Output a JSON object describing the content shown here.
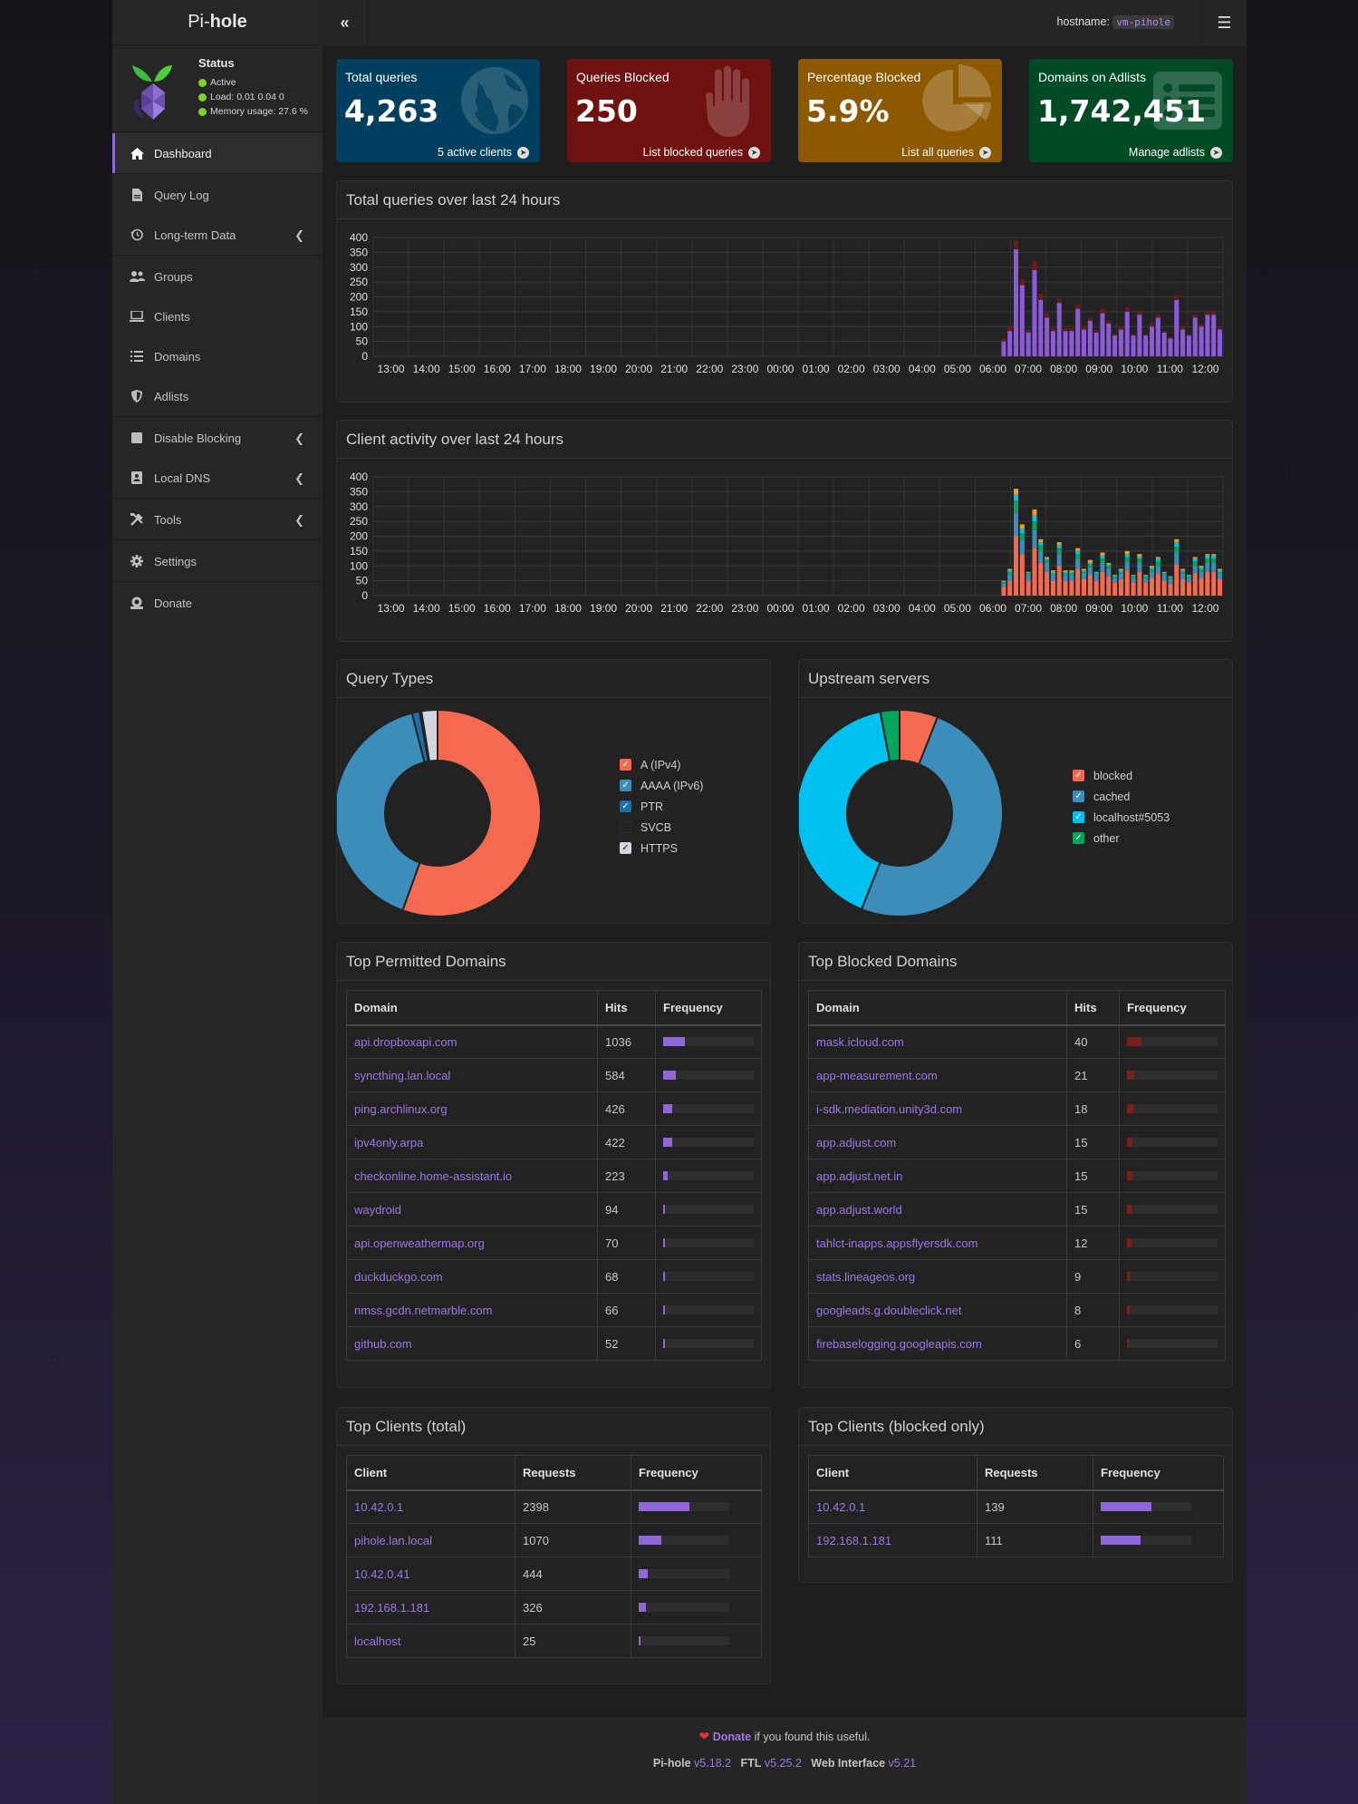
{
  "brand": {
    "pre": "Pi-",
    "bold": "hole"
  },
  "status": {
    "title": "Status",
    "active": "Active",
    "load": "Load:  0.01  0.04  0",
    "memory": "Memory usage:  27.6 %"
  },
  "topbar": {
    "hostname_label": "hostname:",
    "hostname_value": "vm-pihole"
  },
  "nav": [
    {
      "label": "Dashboard",
      "icon": "home-icon"
    },
    {
      "label": "Query Log",
      "icon": "file-icon"
    },
    {
      "label": "Long-term Data",
      "icon": "history-icon"
    },
    {
      "label": "Groups",
      "icon": "users-icon"
    },
    {
      "label": "Clients",
      "icon": "laptop-icon"
    },
    {
      "label": "Domains",
      "icon": "list-icon"
    },
    {
      "label": "Adlists",
      "icon": "shield-icon"
    },
    {
      "label": "Disable Blocking",
      "icon": "stop-icon"
    },
    {
      "label": "Local DNS",
      "icon": "address-book-icon"
    },
    {
      "label": "Tools",
      "icon": "tools-icon"
    },
    {
      "label": "Settings",
      "icon": "gear-icon"
    },
    {
      "label": "Donate",
      "icon": "donate-icon"
    }
  ],
  "tiles": [
    {
      "title": "Total queries",
      "value": "4,263",
      "footer": "5 active clients",
      "color": "#00405e"
    },
    {
      "title": "Queries Blocked",
      "value": "250",
      "footer": "List blocked queries",
      "color": "#6f1111"
    },
    {
      "title": "Percentage Blocked",
      "value": "5.9%",
      "footer": "List all queries",
      "color": "#8c5800"
    },
    {
      "title": "Domains on Adlists",
      "value": "1,742,451",
      "footer": "Manage adlists",
      "color": "#004a25"
    }
  ],
  "charts": {
    "queries_title": "Total queries over last 24 hours",
    "clients_title": "Client activity over last 24 hours",
    "query_types_title": "Query Types",
    "upstream_title": "Upstream servers"
  },
  "chart_data": [
    {
      "type": "bar",
      "title": "Total queries over last 24 hours",
      "ylim": [
        0,
        400
      ],
      "yticks": [
        "400",
        "350",
        "300",
        "250",
        "200",
        "150",
        "100",
        "50",
        "0"
      ],
      "xticks": [
        "13:00",
        "14:00",
        "15:00",
        "16:00",
        "17:00",
        "18:00",
        "19:00",
        "20:00",
        "21:00",
        "22:00",
        "23:00",
        "00:00",
        "01:00",
        "02:00",
        "03:00",
        "04:00",
        "05:00",
        "06:00",
        "07:00",
        "08:00",
        "09:00",
        "10:00",
        "11:00",
        "12:00"
      ],
      "series": [
        {
          "name": "permitted",
          "color": "#8a5ad8",
          "values": [
            50,
            85,
            360,
            240,
            80,
            290,
            190,
            130,
            85,
            180,
            85,
            85,
            160,
            90,
            120,
            80,
            145,
            110,
            70,
            90,
            150,
            70,
            140,
            70,
            100,
            130,
            80,
            60,
            190,
            90,
            70,
            130,
            100,
            140,
            140,
            90
          ]
        },
        {
          "name": "blocked",
          "color": "#6f1a1a",
          "values": [
            10,
            15,
            30,
            20,
            10,
            30,
            20,
            15,
            10,
            15,
            10,
            10,
            15,
            10,
            10,
            10,
            15,
            10,
            5,
            10,
            15,
            5,
            10,
            5,
            10,
            10,
            5,
            5,
            15,
            10,
            5,
            10,
            10,
            10,
            10,
            5
          ]
        }
      ]
    },
    {
      "type": "bar",
      "title": "Client activity over last 24 hours",
      "ylim": [
        0,
        400
      ],
      "yticks": [
        "400",
        "350",
        "300",
        "250",
        "200",
        "150",
        "100",
        "50",
        "0"
      ],
      "xticks": [
        "13:00",
        "14:00",
        "15:00",
        "16:00",
        "17:00",
        "18:00",
        "19:00",
        "20:00",
        "21:00",
        "22:00",
        "23:00",
        "00:00",
        "01:00",
        "02:00",
        "03:00",
        "04:00",
        "05:00",
        "06:00",
        "07:00",
        "08:00",
        "09:00",
        "10:00",
        "11:00",
        "12:00"
      ],
      "series": [
        {
          "name": "10.42.0.1",
          "color": "#f46a50",
          "values": [
            30,
            50,
            200,
            140,
            50,
            160,
            110,
            80,
            50,
            100,
            50,
            50,
            90,
            55,
            70,
            50,
            80,
            65,
            45,
            55,
            85,
            45,
            80,
            45,
            60,
            75,
            50,
            40,
            105,
            55,
            45,
            75,
            60,
            80,
            80,
            55
          ]
        },
        {
          "name": "pihole.lan.local",
          "color": "#3c8dbc",
          "values": [
            10,
            20,
            80,
            50,
            20,
            60,
            40,
            30,
            20,
            40,
            20,
            20,
            35,
            20,
            25,
            20,
            30,
            25,
            15,
            20,
            30,
            15,
            30,
            15,
            20,
            25,
            20,
            15,
            40,
            20,
            15,
            25,
            20,
            30,
            30,
            20
          ]
        },
        {
          "name": "10.42.0.41",
          "color": "#00a65a",
          "values": [
            5,
            10,
            40,
            20,
            5,
            30,
            20,
            10,
            5,
            20,
            5,
            5,
            15,
            5,
            10,
            5,
            15,
            10,
            5,
            5,
            15,
            5,
            15,
            5,
            10,
            15,
            5,
            5,
            20,
            5,
            5,
            15,
            10,
            15,
            15,
            5
          ]
        },
        {
          "name": "192.168.1.181",
          "color": "#00c0ef",
          "values": [
            3,
            5,
            20,
            15,
            3,
            20,
            10,
            5,
            5,
            10,
            5,
            5,
            10,
            5,
            5,
            5,
            10,
            5,
            3,
            5,
            10,
            3,
            5,
            3,
            5,
            10,
            3,
            3,
            15,
            5,
            3,
            10,
            5,
            10,
            10,
            5
          ]
        },
        {
          "name": "localhost",
          "color": "#f39c12",
          "values": [
            2,
            5,
            20,
            15,
            2,
            20,
            10,
            5,
            5,
            10,
            5,
            5,
            10,
            5,
            10,
            0,
            10,
            5,
            2,
            5,
            10,
            2,
            10,
            2,
            5,
            5,
            2,
            2,
            10,
            5,
            2,
            5,
            5,
            5,
            5,
            5
          ]
        }
      ]
    },
    {
      "type": "pie",
      "title": "Query Types",
      "labels": [
        "A (IPv4)",
        "AAAA (IPv6)",
        "PTR",
        "SVCB",
        "HTTPS"
      ],
      "values": [
        55.5,
        40.5,
        1.2,
        0.3,
        2.5
      ],
      "colors": [
        "#f46a50",
        "#3c8dbc",
        "#1e6fa6",
        "#232323",
        "#d2d6de"
      ]
    },
    {
      "type": "pie",
      "title": "Upstream servers",
      "labels": [
        "blocked",
        "cached",
        "localhost#5053",
        "other"
      ],
      "values": [
        6,
        50,
        41,
        3
      ],
      "colors": [
        "#f46a50",
        "#3c8dbc",
        "#00c0ef",
        "#00a65a"
      ]
    }
  ],
  "tables": {
    "permitted": {
      "title": "Top Permitted Domains",
      "headers": [
        "Domain",
        "Hits",
        "Frequency"
      ],
      "rows": [
        {
          "name": "api.dropboxapi.com",
          "count": "1036",
          "pct": 24.3
        },
        {
          "name": "syncthing.lan.local",
          "count": "584",
          "pct": 13.7
        },
        {
          "name": "ping.archlinux.org",
          "count": "426",
          "pct": 10.0
        },
        {
          "name": "ipv4only.arpa",
          "count": "422",
          "pct": 9.9
        },
        {
          "name": "checkonline.home-assistant.io",
          "count": "223",
          "pct": 5.2
        },
        {
          "name": "waydroid",
          "count": "94",
          "pct": 2.2
        },
        {
          "name": "api.openweathermap.org",
          "count": "70",
          "pct": 1.6
        },
        {
          "name": "duckduckgo.com",
          "count": "68",
          "pct": 1.6
        },
        {
          "name": "nmss.gcdn.netmarble.com",
          "count": "66",
          "pct": 1.5
        },
        {
          "name": "github.com",
          "count": "52",
          "pct": 1.2
        }
      ]
    },
    "blocked": {
      "title": "Top Blocked Domains",
      "headers": [
        "Domain",
        "Hits",
        "Frequency"
      ],
      "rows": [
        {
          "name": "mask.icloud.com",
          "count": "40",
          "pct": 16.0
        },
        {
          "name": "app-measurement.com",
          "count": "21",
          "pct": 8.4
        },
        {
          "name": "i-sdk.mediation.unity3d.com",
          "count": "18",
          "pct": 7.2
        },
        {
          "name": "app.adjust.com",
          "count": "15",
          "pct": 6.0
        },
        {
          "name": "app.adjust.net.in",
          "count": "15",
          "pct": 6.0
        },
        {
          "name": "app.adjust.world",
          "count": "15",
          "pct": 6.0
        },
        {
          "name": "tahlct-inapps.appsflyersdk.com",
          "count": "12",
          "pct": 4.8
        },
        {
          "name": "stats.lineageos.org",
          "count": "9",
          "pct": 3.6
        },
        {
          "name": "googleads.g.doubleclick.net",
          "count": "8",
          "pct": 3.2
        },
        {
          "name": "firebaselogging.googleapis.com",
          "count": "6",
          "pct": 2.4
        }
      ]
    },
    "clients_total": {
      "title": "Top Clients (total)",
      "headers": [
        "Client",
        "Requests",
        "Frequency"
      ],
      "rows": [
        {
          "name": "10.42.0.1",
          "count": "2398",
          "pct": 56.3
        },
        {
          "name": "pihole.lan.local",
          "count": "1070",
          "pct": 25.1
        },
        {
          "name": "10.42.0.41",
          "count": "444",
          "pct": 10.4
        },
        {
          "name": "192.168.1.181",
          "count": "326",
          "pct": 7.6
        },
        {
          "name": "localhost",
          "count": "25",
          "pct": 0.6
        }
      ]
    },
    "clients_blocked": {
      "title": "Top Clients (blocked only)",
      "headers": [
        "Client",
        "Requests",
        "Frequency"
      ],
      "rows": [
        {
          "name": "10.42.0.1",
          "count": "139",
          "pct": 55.6
        },
        {
          "name": "192.168.1.181",
          "count": "111",
          "pct": 44.4
        }
      ]
    }
  },
  "footer": {
    "donate": "Donate",
    "donate_suffix": " if you found this useful.",
    "pihole_label": "Pi-hole",
    "pihole_ver": "v5.18.2",
    "ftl_label": "FTL",
    "ftl_ver": "v5.25.2",
    "web_label": "Web Interface",
    "web_ver": "v5.21"
  },
  "colors": {
    "accent": "#8f67d8",
    "link": "#9c79e6",
    "active_dot": "#7cd321"
  }
}
